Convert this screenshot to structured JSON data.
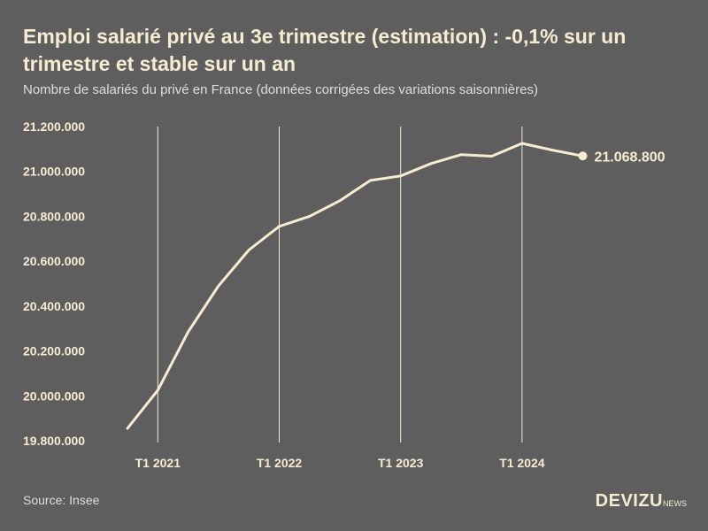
{
  "header": {
    "title": "Emploi salarié privé au 3e trimestre (estimation) : -0,1% sur un trimestre et stable sur un an",
    "subtitle": "Nombre de salariés du privé en France (données corrigées des variations saisonnières)"
  },
  "footer": {
    "source": "Source: Insee",
    "logo_main": "DEVIZU",
    "logo_sub": "NEWS"
  },
  "colors": {
    "background": "#5e5e5e",
    "line": "#f6ecd0",
    "text": "#f6ecd0",
    "subtext": "#dedede"
  },
  "chart_data": {
    "type": "line",
    "title": "",
    "xlabel": "",
    "ylabel": "",
    "ylim": [
      19800000,
      21200000
    ],
    "yticks": [
      19800000,
      20000000,
      20200000,
      20400000,
      20600000,
      20800000,
      21000000,
      21200000
    ],
    "ytick_labels": [
      "19.800.000",
      "20.000.000",
      "20.200.000",
      "20.400.000",
      "20.600.000",
      "20.800.000",
      "21.000.000",
      "21.200.000"
    ],
    "xticks": [
      {
        "label": "T1 2021",
        "index": 1
      },
      {
        "label": "T1 2022",
        "index": 5
      },
      {
        "label": "T1 2023",
        "index": 9
      },
      {
        "label": "T1 2024",
        "index": 13
      }
    ],
    "grid": "vertical",
    "end_label": "21.068.800",
    "series": [
      {
        "values": [
          19855000,
          20025000,
          20285000,
          20490000,
          20650000,
          20755000,
          20800000,
          20870000,
          20960000,
          20980000,
          21035000,
          21075000,
          21068000,
          21125000,
          21095000,
          21068800
        ]
      }
    ]
  }
}
